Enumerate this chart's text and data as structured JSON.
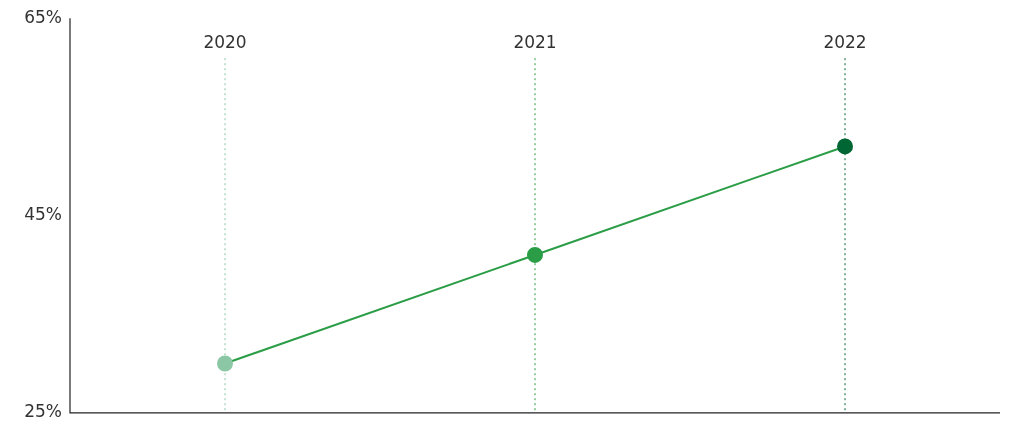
{
  "chart_data": {
    "type": "line",
    "categories": [
      "2020",
      "2021",
      "2022"
    ],
    "series": [
      {
        "color": "#2a9d46",
        "colors": [
          "#8cc7a5",
          "#2a9d46",
          "#006633"
        ],
        "values": [
          30,
          41,
          52
        ]
      }
    ],
    "ylim": [
      25,
      65
    ],
    "yticks": [
      {
        "value": 25,
        "label": "25%"
      },
      {
        "value": 45,
        "label": "45%"
      },
      {
        "value": 65,
        "label": "65%"
      }
    ],
    "ref_lines": [
      {
        "axis": "x",
        "value": "2020",
        "color": "#8cc7a5",
        "line_style": "dotted"
      },
      {
        "axis": "x",
        "value": "2021",
        "color": "#2a9d46",
        "line_style": "dotted"
      },
      {
        "axis": "x",
        "value": "2022",
        "color": "#006633",
        "line_style": "dotted"
      }
    ],
    "marker": "circle",
    "line_style": "solid",
    "legend": false
  }
}
